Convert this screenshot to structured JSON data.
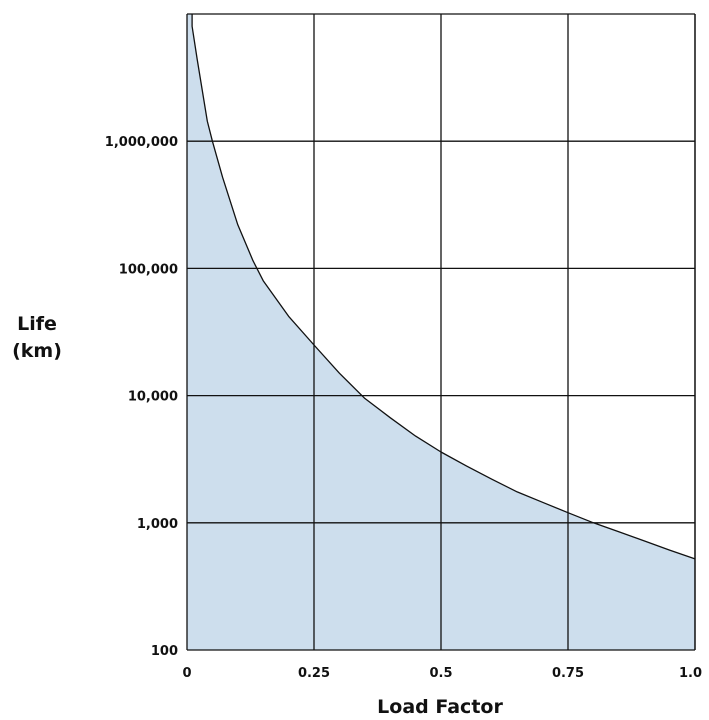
{
  "chart_data": {
    "type": "area",
    "title": "",
    "xlabel": "Load Factor",
    "ylabel_lines": [
      "Life",
      "(km)"
    ],
    "y_scale": "log",
    "xlim": [
      0,
      1.0
    ],
    "ylim": [
      100,
      10000000
    ],
    "grid": true,
    "x_ticks": [
      {
        "value": 0,
        "label": "0"
      },
      {
        "value": 0.25,
        "label": "0.25"
      },
      {
        "value": 0.5,
        "label": "0.5"
      },
      {
        "value": 0.75,
        "label": "0.75"
      },
      {
        "value": 1.0,
        "label": "1.0"
      }
    ],
    "y_ticks": [
      {
        "value": 100,
        "label": "100"
      },
      {
        "value": 1000,
        "label": "1,000"
      },
      {
        "value": 10000,
        "label": "10,000"
      },
      {
        "value": 100000,
        "label": "100,000"
      },
      {
        "value": 1000000,
        "label": "1,000,000"
      }
    ],
    "series": [
      {
        "fill_color": "#cddeed",
        "line_color": "#111111",
        "x": [
          0.01,
          0.02,
          0.04,
          0.05,
          0.07,
          0.1,
          0.13,
          0.15,
          0.2,
          0.25,
          0.3,
          0.35,
          0.4,
          0.45,
          0.5,
          0.55,
          0.6,
          0.65,
          0.7,
          0.75,
          0.8,
          0.85,
          0.9,
          0.95,
          1.0
        ],
        "y": [
          8000000,
          4400000,
          1440000,
          1000000,
          520000,
          220000,
          115000,
          80000,
          42000,
          25000,
          15000,
          9500,
          6700,
          4800,
          3600,
          2800,
          2200,
          1750,
          1450,
          1200,
          1000,
          850,
          720,
          610,
          520
        ]
      }
    ]
  }
}
